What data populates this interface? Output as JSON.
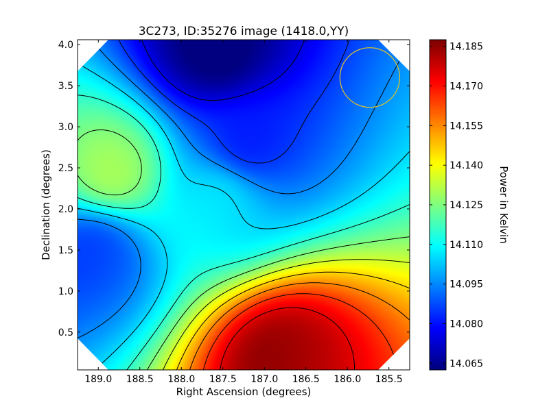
{
  "chart_data": {
    "type": "heatmap",
    "title": "3C273, ID:35276 image (1418.0,YY)",
    "xlabel": "Right Ascension (degrees)",
    "ylabel": "Declination (degrees)",
    "xlim": [
      189.25,
      185.25
    ],
    "ylim": [
      0.04,
      4.06
    ],
    "x_ticks": [
      {
        "value": 189.0,
        "label": "189.0"
      },
      {
        "value": 188.5,
        "label": "188.5"
      },
      {
        "value": 188.0,
        "label": "188.0"
      },
      {
        "value": 187.5,
        "label": "187.5"
      },
      {
        "value": 187.0,
        "label": "187.0"
      },
      {
        "value": 186.5,
        "label": "186.5"
      },
      {
        "value": 186.0,
        "label": "186.0"
      },
      {
        "value": 185.5,
        "label": "185.5"
      }
    ],
    "y_ticks": [
      {
        "value": 0.5,
        "label": "0.5"
      },
      {
        "value": 1.0,
        "label": "1.0"
      },
      {
        "value": 1.5,
        "label": "1.5"
      },
      {
        "value": 2.0,
        "label": "2.0"
      },
      {
        "value": 2.5,
        "label": "2.5"
      },
      {
        "value": 3.0,
        "label": "3.0"
      },
      {
        "value": 3.5,
        "label": "3.5"
      },
      {
        "value": 4.0,
        "label": "4.0"
      }
    ],
    "colorbar": {
      "label": "Power in Kelvin",
      "colormap": "jet",
      "range": [
        14.0625,
        14.1875
      ],
      "ticks": [
        {
          "value": 14.065,
          "label": "14.065"
        },
        {
          "value": 14.08,
          "label": "14.080"
        },
        {
          "value": 14.095,
          "label": "14.095"
        },
        {
          "value": 14.11,
          "label": "14.110"
        },
        {
          "value": 14.125,
          "label": "14.125"
        },
        {
          "value": 14.14,
          "label": "14.140"
        },
        {
          "value": 14.155,
          "label": "14.155"
        },
        {
          "value": 14.17,
          "label": "14.170"
        },
        {
          "value": 14.185,
          "label": "14.185"
        }
      ]
    },
    "field_features": [
      {
        "kind": "minimum",
        "ra": 187.6,
        "dec": 3.95,
        "value": 14.066
      },
      {
        "kind": "minimum",
        "ra": 187.2,
        "dec": 2.8,
        "value": 14.084
      },
      {
        "kind": "minimum",
        "ra": 189.05,
        "dec": 1.45,
        "value": 14.082
      },
      {
        "kind": "maximum",
        "ra": 186.7,
        "dec": 0.18,
        "value": 14.186
      },
      {
        "kind": "maximum",
        "ra": 188.85,
        "dec": 2.5,
        "value": 14.128
      },
      {
        "kind": "saddle",
        "ra": 187.55,
        "dec": 2.12,
        "value": 14.106
      }
    ],
    "contour_levels": [
      14.075,
      14.085,
      14.095,
      14.105,
      14.115,
      14.125,
      14.135,
      14.145,
      14.155,
      14.165,
      14.175
    ],
    "contour_color": "#000000",
    "marker": {
      "shape": "circle",
      "ra": 185.73,
      "dec": 3.6,
      "radius_deg": 0.36,
      "color": "#d8c02a"
    },
    "grid": false
  }
}
